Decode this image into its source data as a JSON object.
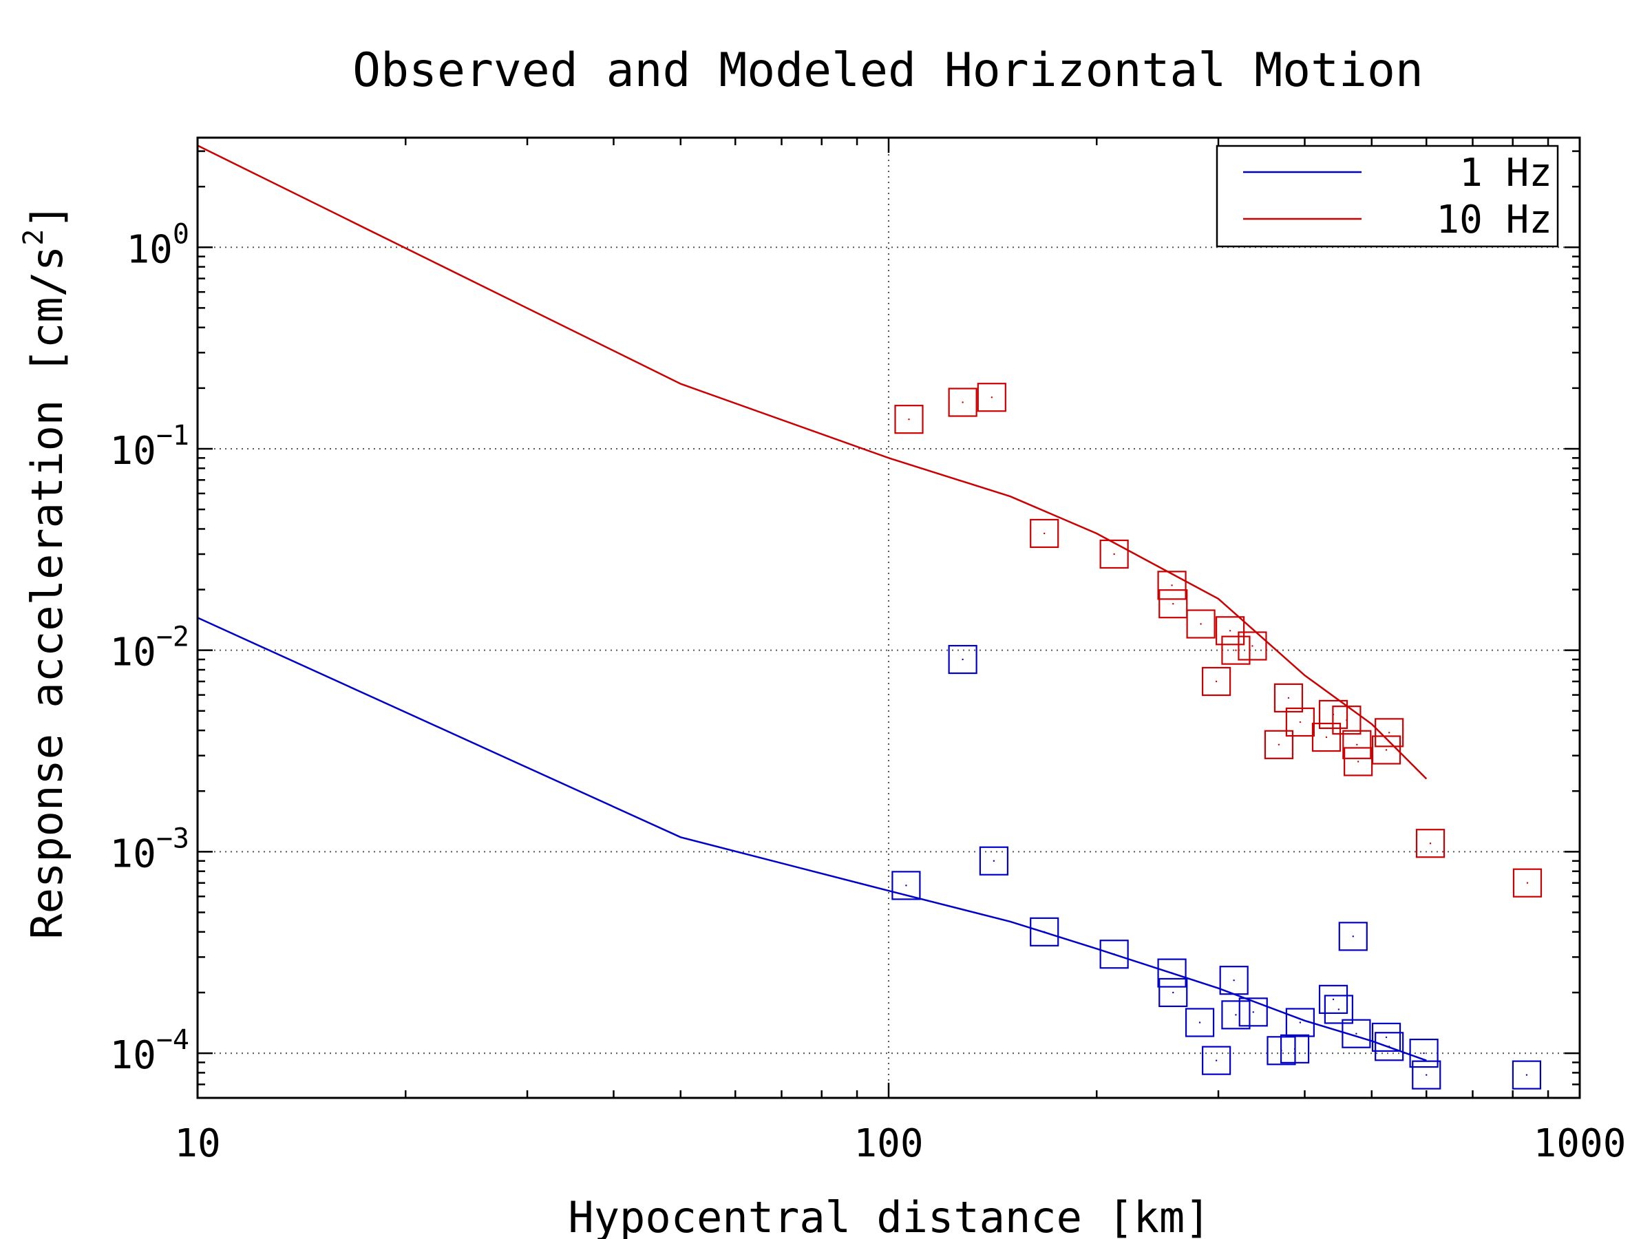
{
  "chart_data": {
    "type": "scatter",
    "title": "Observed and Modeled Horizontal Motion",
    "xlabel": "Hypocentral distance [km]",
    "ylabel": "Response acceleration [cm/s",
    "ylabel_sup": "2",
    "ylabel_end": "]",
    "x_scale": "log",
    "y_scale": "log",
    "xlim": [
      10,
      1000
    ],
    "ylim": [
      6e-05,
      3.5
    ],
    "x_ticks": [
      {
        "value": 10,
        "label": "10"
      },
      {
        "value": 100,
        "label": "100"
      },
      {
        "value": 1000,
        "label": "1000"
      }
    ],
    "y_ticks": [
      {
        "value": 1,
        "base": "10",
        "exp": "0"
      },
      {
        "value": 0.1,
        "base": "10",
        "exp": "−1"
      },
      {
        "value": 0.01,
        "base": "10",
        "exp": "−2"
      },
      {
        "value": 0.001,
        "base": "10",
        "exp": "−3"
      },
      {
        "value": 0.0001,
        "base": "10",
        "exp": "−4"
      }
    ],
    "grid": {
      "x_major": true,
      "y_major": true,
      "style": "dotted"
    },
    "legend": {
      "position": "top-right",
      "entries": [
        {
          "label": "1 Hz",
          "color": "#0000cc"
        },
        {
          "label": "10 Hz",
          "color": "#cc0000"
        }
      ]
    },
    "series": [
      {
        "name": "1 Hz",
        "color": "#0000cc",
        "model_line": {
          "x": [
            10,
            50,
            100,
            150,
            200,
            300,
            400,
            500,
            600
          ],
          "y": [
            0.0145,
            0.00118,
            0.00064,
            0.00045,
            0.00033,
            0.00021,
            0.000145,
            0.000115,
            9.2e-05
          ]
        },
        "observed": {
          "x": [
            106,
            128,
            142,
            168,
            212,
            257,
            258,
            282,
            298,
            316,
            318,
            337,
            370,
            387,
            394,
            440,
            448,
            470,
            475,
            525,
            530,
            595,
            600,
            838
          ],
          "y": [
            0.00068,
            0.009,
            0.0009,
            0.0004,
            0.00031,
            0.00025,
            0.0002,
            0.000142,
            9.2e-05,
            0.00023,
            0.000155,
            0.00016,
            0.000103,
            0.000105,
            0.000142,
            0.000185,
            0.000165,
            0.00038,
            0.000125,
            0.00012,
            0.000108,
            0.0001,
            7.8e-05,
            7.8e-05
          ]
        }
      },
      {
        "name": "10 Hz",
        "color": "#cc0000",
        "model_line": {
          "x": [
            10,
            50,
            100,
            150,
            200,
            300,
            400,
            500,
            600
          ],
          "y": [
            3.2,
            0.21,
            0.09,
            0.058,
            0.038,
            0.018,
            0.0075,
            0.0043,
            0.0023
          ]
        },
        "observed": {
          "x": [
            107,
            128,
            141,
            168,
            212,
            257,
            258,
            283,
            298,
            312,
            318,
            336,
            367,
            379,
            394,
            430,
            440,
            460,
            476,
            478,
            525,
            530,
            608,
            840
          ],
          "y": [
            0.14,
            0.17,
            0.18,
            0.038,
            0.03,
            0.021,
            0.017,
            0.0135,
            0.007,
            0.0125,
            0.01,
            0.0105,
            0.0034,
            0.0058,
            0.0044,
            0.0037,
            0.0048,
            0.0045,
            0.0034,
            0.0028,
            0.0032,
            0.0039,
            0.0011,
            0.0007
          ]
        }
      }
    ]
  }
}
